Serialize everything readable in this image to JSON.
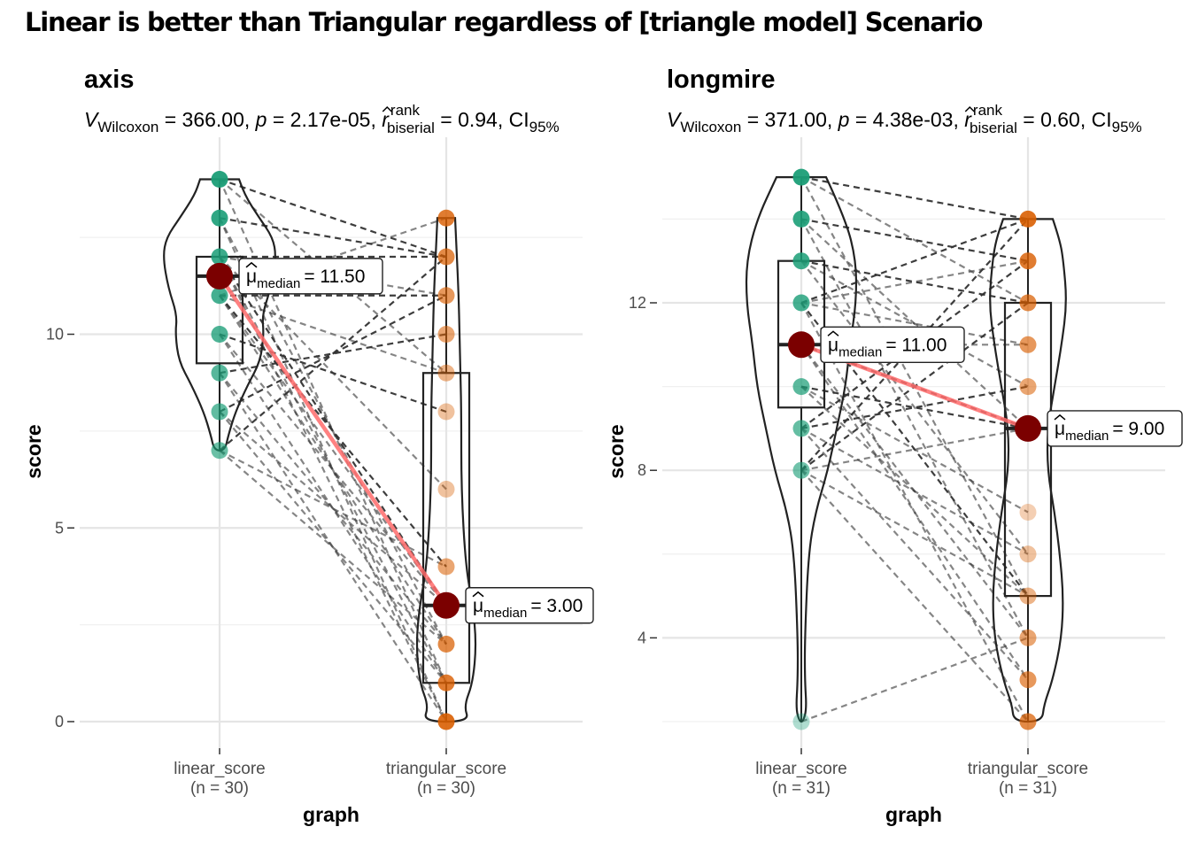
{
  "title": "Linear is better than Triangular regardless of [triangle model] Scenario",
  "colors": {
    "linear": "#1B9E77",
    "triangular": "#D95F02",
    "median_point": "#7B0000",
    "median_line": "#FF6B6B",
    "paired_line": "#333333",
    "grid_major": "#E5E5E5",
    "grid_minor": "#F0F0F0"
  },
  "chart_data": [
    {
      "type": "violin-box-paired",
      "title": "axis",
      "subtitle_parts": {
        "stat": "V",
        "stat_sub": "Wilcoxon",
        "stat_value": " = 366.00, ",
        "p": "p",
        "p_value": " = 2.17e-05, ",
        "r": "r",
        "r_sup": "rank",
        "r_sub": "biserial",
        "r_value": " = 0.94, CI",
        "ci_sub": "95%"
      },
      "xlabel": "graph",
      "ylabel": "score",
      "ylim": [
        0,
        14
      ],
      "yticks": [
        0,
        5,
        10
      ],
      "categories": [
        "linear_score",
        "triangular_score"
      ],
      "n_labels": [
        "(n = 30)",
        "(n = 30)"
      ],
      "box": [
        {
          "q1": 9.25,
          "median": 11.5,
          "q3": 12,
          "whisker_low": 7,
          "whisker_high": 14
        },
        {
          "q1": 1,
          "median": 3,
          "q3": 9,
          "whisker_low": 0,
          "whisker_high": 13
        }
      ],
      "points": [
        [
          14,
          13,
          12,
          11,
          10,
          9,
          8,
          7
        ],
        [
          13,
          12,
          11,
          10,
          9,
          8,
          6,
          4,
          3,
          2,
          1,
          0
        ]
      ],
      "pairs": [
        [
          14,
          12
        ],
        [
          14,
          9
        ],
        [
          14,
          1
        ],
        [
          13,
          12
        ],
        [
          13,
          2
        ],
        [
          13,
          0
        ],
        [
          12,
          12
        ],
        [
          12,
          11
        ],
        [
          12,
          6
        ],
        [
          12,
          3
        ],
        [
          12,
          1
        ],
        [
          12,
          0
        ],
        [
          11,
          11
        ],
        [
          11,
          13
        ],
        [
          11,
          9
        ],
        [
          11,
          4
        ],
        [
          11,
          2
        ],
        [
          11,
          3
        ],
        [
          10,
          8
        ],
        [
          10,
          3
        ],
        [
          10,
          1
        ],
        [
          9,
          10
        ],
        [
          9,
          2
        ],
        [
          9,
          0
        ],
        [
          8,
          11
        ],
        [
          8,
          3
        ],
        [
          8,
          1
        ],
        [
          7,
          12
        ],
        [
          7,
          4
        ],
        [
          7,
          2
        ]
      ],
      "medians": [
        11.5,
        3.0
      ],
      "median_labels": [
        "= 11.50",
        "= 3.00"
      ],
      "median_label_text": "μ",
      "median_label_sub": "median"
    },
    {
      "type": "violin-box-paired",
      "title": "longmire",
      "subtitle_parts": {
        "stat": "V",
        "stat_sub": "Wilcoxon",
        "stat_value": " = 371.00, ",
        "p": "p",
        "p_value": " = 4.38e-03, ",
        "r": "r",
        "r_sup": "rank",
        "r_sub": "biserial",
        "r_value": " = 0.60, CI",
        "ci_sub": "95%"
      },
      "xlabel": "graph",
      "ylabel": "score",
      "ylim": [
        2,
        15
      ],
      "yticks": [
        4,
        8,
        12
      ],
      "categories": [
        "linear_score",
        "triangular_score"
      ],
      "n_labels": [
        "(n = 31)",
        "(n = 31)"
      ],
      "box": [
        {
          "q1": 9.5,
          "median": 11,
          "q3": 13,
          "whisker_low": 2,
          "whisker_high": 15
        },
        {
          "q1": 5,
          "median": 9,
          "q3": 12,
          "whisker_low": 2,
          "whisker_high": 14
        }
      ],
      "points": [
        [
          15,
          14,
          13,
          12,
          11,
          10,
          9,
          8,
          2
        ],
        [
          14,
          13,
          12,
          11,
          10,
          9,
          7,
          6,
          5,
          4,
          3,
          2
        ]
      ],
      "pairs": [
        [
          15,
          14
        ],
        [
          15,
          12
        ],
        [
          15,
          5
        ],
        [
          14,
          13
        ],
        [
          14,
          9
        ],
        [
          14,
          4
        ],
        [
          13,
          12
        ],
        [
          13,
          10
        ],
        [
          13,
          6
        ],
        [
          12,
          14
        ],
        [
          12,
          13
        ],
        [
          12,
          11
        ],
        [
          12,
          5
        ],
        [
          12,
          2
        ],
        [
          11,
          11
        ],
        [
          11,
          9
        ],
        [
          11,
          4
        ],
        [
          11,
          3
        ],
        [
          10,
          9
        ],
        [
          10,
          7
        ],
        [
          10,
          5
        ],
        [
          9,
          10
        ],
        [
          9,
          6
        ],
        [
          9,
          3
        ],
        [
          8,
          14
        ],
        [
          8,
          9
        ],
        [
          8,
          5
        ],
        [
          8,
          12
        ],
        [
          8,
          2
        ],
        [
          2,
          4
        ],
        [
          9,
          13
        ]
      ],
      "medians": [
        11.0,
        9.0
      ],
      "median_labels": [
        "= 11.00",
        "= 9.00"
      ],
      "median_label_text": "μ",
      "median_label_sub": "median"
    }
  ]
}
